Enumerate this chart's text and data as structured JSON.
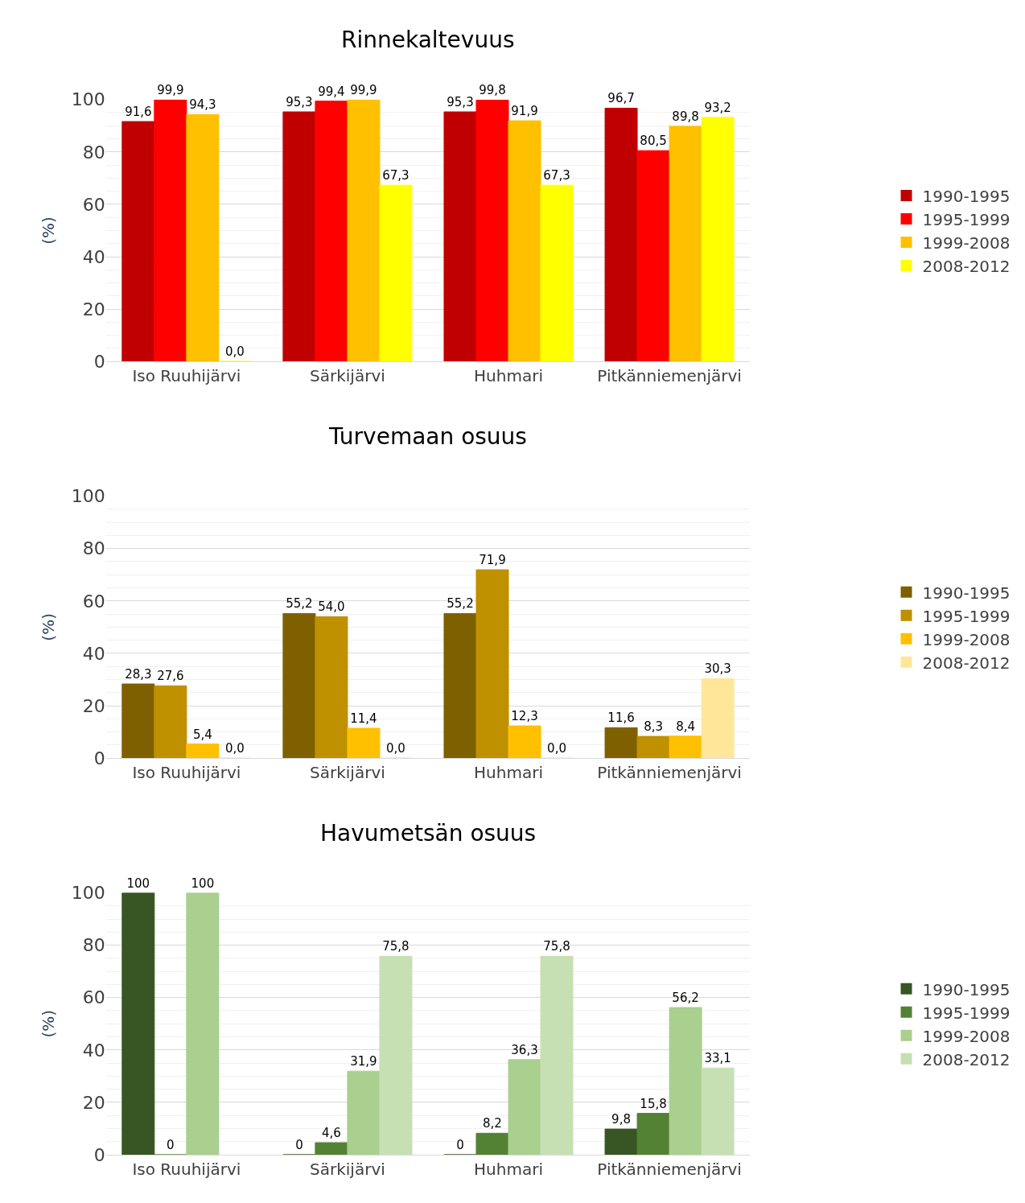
{
  "chart_data": [
    {
      "type": "bar",
      "title": "Rinnekaltevuus",
      "ylabel": "(%)",
      "categories": [
        "Iso Ruuhijärvi",
        "Särkijärvi",
        "Huhmari",
        "Pitkänniemenjärvi"
      ],
      "ylim": [
        0,
        100
      ],
      "yticks": [
        0,
        20,
        40,
        60,
        80,
        100
      ],
      "grid": "y",
      "legend": "right",
      "series": [
        {
          "name": "1990-1995",
          "color": "#c00000",
          "values": [
            91.6,
            95.3,
            95.3,
            96.7
          ],
          "value_labels": [
            "91,6",
            "95,3",
            "95,3",
            "96,7"
          ]
        },
        {
          "name": "1995-1999",
          "color": "#ff0000",
          "values": [
            99.9,
            99.4,
            99.8,
            80.5
          ],
          "value_labels": [
            "99,9",
            "99,4",
            "99,8",
            "80,5"
          ]
        },
        {
          "name": "1999-2008",
          "color": "#ffc000",
          "values": [
            94.3,
            99.9,
            91.9,
            89.8
          ],
          "value_labels": [
            "94,3",
            "99,9",
            "91,9",
            "89,8"
          ]
        },
        {
          "name": "2008-2012",
          "color": "#ffff00",
          "values": [
            0.0,
            67.3,
            67.3,
            93.2
          ],
          "value_labels": [
            "0,0",
            "67,3",
            "67,3",
            "93,2"
          ]
        }
      ]
    },
    {
      "type": "bar",
      "title": "Turvemaan osuus",
      "ylabel": "(%)",
      "categories": [
        "Iso Ruuhijärvi",
        "Särkijärvi",
        "Huhmari",
        "Pitkänniemenjärvi"
      ],
      "ylim": [
        0,
        100
      ],
      "yticks": [
        0,
        20,
        40,
        60,
        80,
        100
      ],
      "grid": "y",
      "legend": "right",
      "series": [
        {
          "name": "1990-1995",
          "color": "#7f6000",
          "values": [
            28.3,
            55.2,
            55.2,
            11.6
          ],
          "value_labels": [
            "28,3",
            "55,2",
            "55,2",
            "11,6"
          ]
        },
        {
          "name": "1995-1999",
          "color": "#bf9000",
          "values": [
            27.6,
            54.0,
            71.9,
            8.3
          ],
          "value_labels": [
            "27,6",
            "54,0",
            "71,9",
            "8,3"
          ]
        },
        {
          "name": "1999-2008",
          "color": "#ffc000",
          "values": [
            5.4,
            11.4,
            12.3,
            8.4
          ],
          "value_labels": [
            "5,4",
            "11,4",
            "12,3",
            "8,4"
          ]
        },
        {
          "name": "2008-2012",
          "color": "#ffe699",
          "values": [
            0.0,
            0.0,
            0.0,
            30.3
          ],
          "value_labels": [
            "0,0",
            "0,0",
            "0,0",
            "30,3"
          ]
        }
      ]
    },
    {
      "type": "bar",
      "title": "Havumetsän osuus",
      "ylabel": "(%)",
      "categories": [
        "Iso Ruuhijärvi",
        "Särkijärvi",
        "Huhmari",
        "Pitkänniemenjärvi"
      ],
      "ylim": [
        0,
        100
      ],
      "yticks": [
        0,
        20,
        40,
        60,
        80,
        100
      ],
      "grid": "y",
      "legend": "right",
      "series": [
        {
          "name": "1990-1995",
          "color": "#375623",
          "values": [
            100,
            0,
            0,
            9.8
          ],
          "value_labels": [
            "100",
            "0",
            "0",
            "9,8"
          ]
        },
        {
          "name": "1995-1999",
          "color": "#548235",
          "values": [
            0,
            4.6,
            8.2,
            15.8
          ],
          "value_labels": [
            "0",
            "4,6",
            "8,2",
            "15,8"
          ]
        },
        {
          "name": "1999-2008",
          "color": "#a9d08e",
          "values": [
            100,
            31.9,
            36.3,
            56.2
          ],
          "value_labels": [
            "100",
            "31,9",
            "36,3",
            "56,2"
          ]
        },
        {
          "name": "2008-2012",
          "color": "#c6e0b4",
          "values": [
            null,
            75.8,
            75.8,
            33.1
          ],
          "value_labels": [
            null,
            "75,8",
            "75,8",
            "33,1"
          ]
        }
      ]
    }
  ]
}
